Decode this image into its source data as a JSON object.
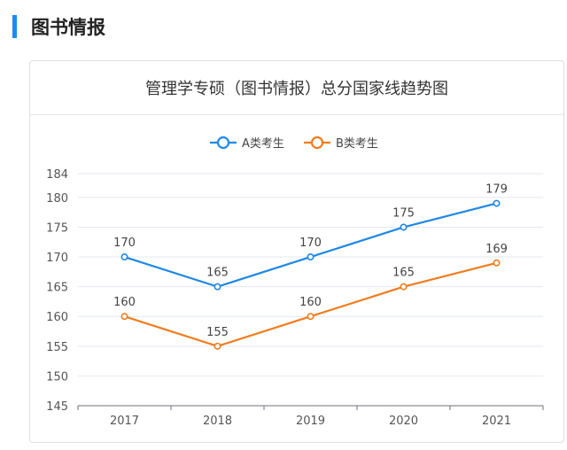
{
  "section": {
    "title": "图书情报"
  },
  "chart_data": {
    "type": "line",
    "title": "管理学专硕（图书情报）总分国家线趋势图",
    "categories": [
      "2017",
      "2018",
      "2019",
      "2020",
      "2021"
    ],
    "series": [
      {
        "name": "A类考生",
        "values": [
          170,
          165,
          170,
          175,
          179
        ],
        "color": "#1e88e5"
      },
      {
        "name": "B类考生",
        "values": [
          160,
          155,
          160,
          165,
          169
        ],
        "color": "#f07c1e"
      }
    ],
    "yticks": [
      145,
      150,
      155,
      160,
      165,
      170,
      175,
      180,
      184
    ],
    "ylim": [
      145,
      184
    ],
    "xlabel": "",
    "ylabel": "",
    "grid": true,
    "legend": "top-center"
  }
}
